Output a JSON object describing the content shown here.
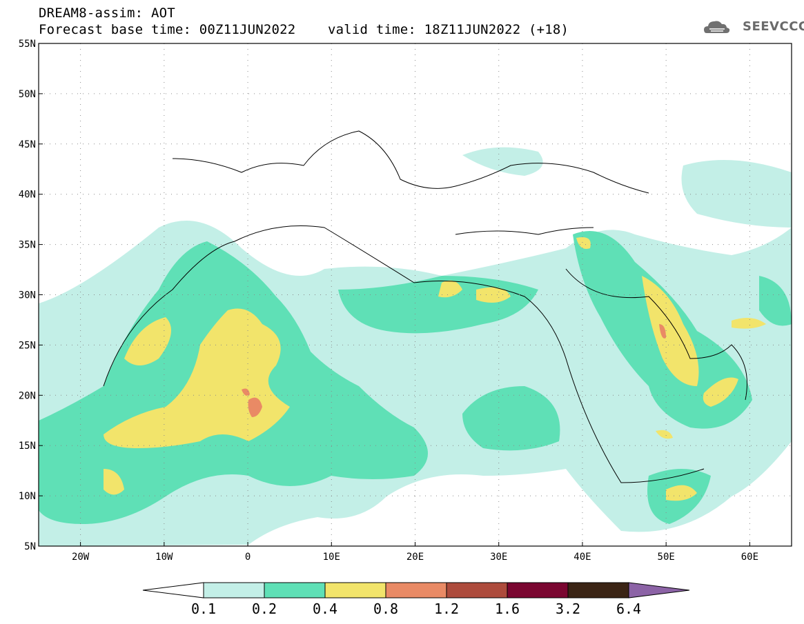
{
  "header": {
    "line1": "DREAM8-assim: AOT",
    "line2": "Forecast base time: 00Z11JUN2022    valid time: 18Z11JUN2022 (+18)"
  },
  "logo": {
    "text": "SEEVCCC",
    "icon": "cloud-icon"
  },
  "map": {
    "lon_range": [
      -25,
      65
    ],
    "lat_range": [
      5,
      55
    ],
    "lat_ticks": [
      "5N",
      "10N",
      "15N",
      "20N",
      "25N",
      "30N",
      "35N",
      "40N",
      "45N",
      "50N",
      "55N"
    ],
    "lat_values": [
      5,
      10,
      15,
      20,
      25,
      30,
      35,
      40,
      45,
      50,
      55
    ],
    "lon_ticks": [
      "20W",
      "10W",
      "0",
      "10E",
      "20E",
      "30E",
      "40E",
      "50E",
      "60E"
    ],
    "lon_values": [
      -20,
      -10,
      0,
      10,
      20,
      30,
      40,
      50,
      60
    ],
    "grid": true
  },
  "colorbar": {
    "labels": [
      "0.1",
      "0.2",
      "0.4",
      "0.8",
      "1.2",
      "1.6",
      "3.2",
      "6.4"
    ],
    "colors": [
      "#ffffff",
      "#c3efe7",
      "#5fe0b6",
      "#f2e46b",
      "#e98a65",
      "#ad4b3c",
      "#7a0630",
      "#3b2415",
      "#8c63a6"
    ]
  }
}
